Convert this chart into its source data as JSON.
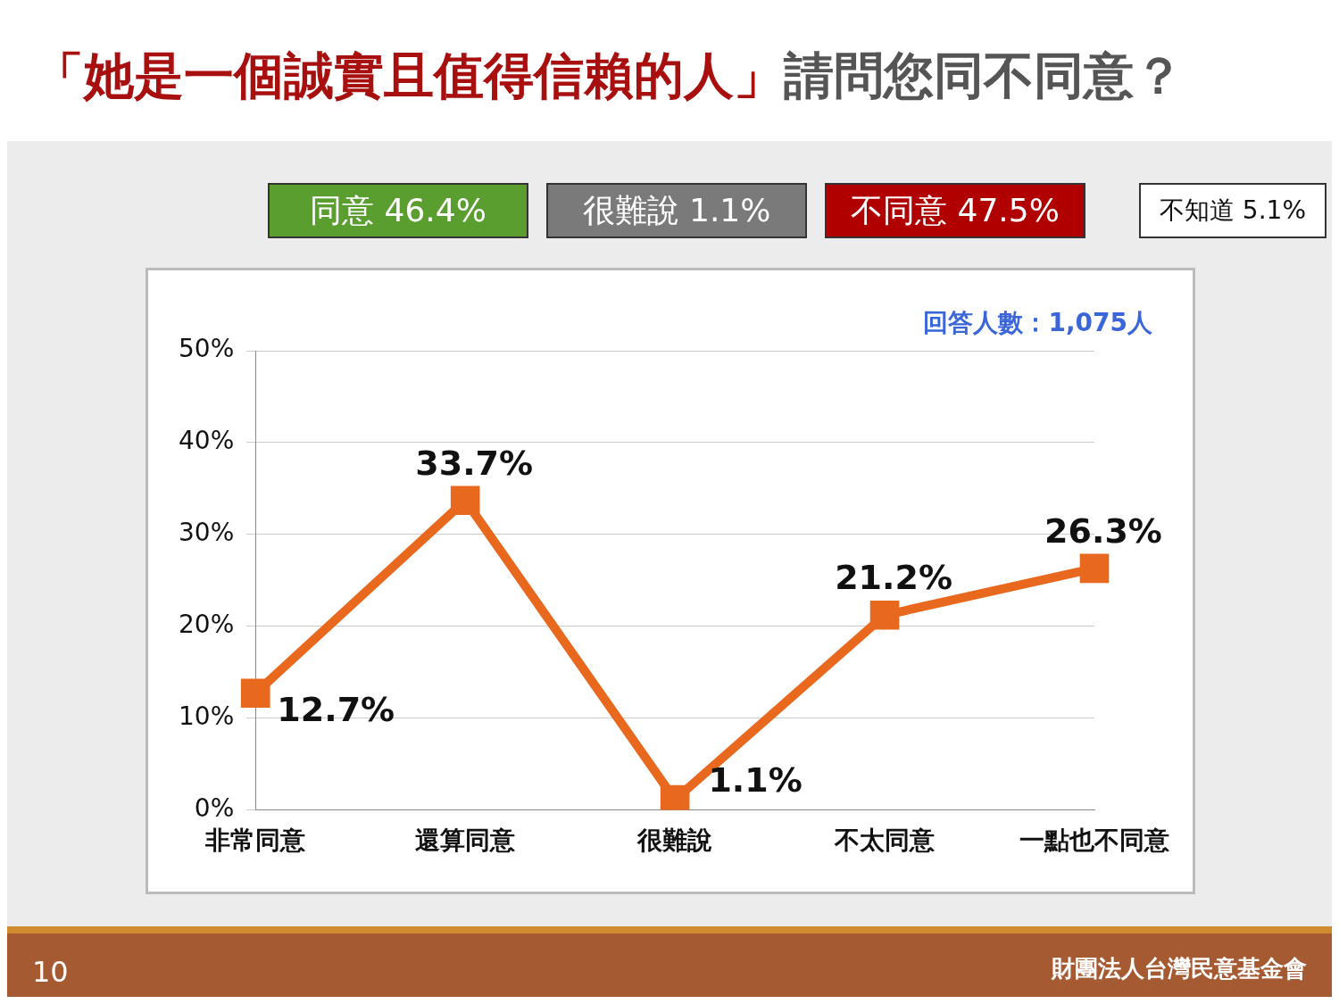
{
  "chart_data": {
    "type": "line",
    "title": "「她是一個誠實且值得信賴的人」請問您同不同意？",
    "categories": [
      "非常同意",
      "還算同意",
      "很難說",
      "不太同意",
      "一點也不同意"
    ],
    "series": [
      {
        "color": "#e8691e",
        "values": [
          12.7,
          33.7,
          1.1,
          21.2,
          26.3
        ],
        "value_labels": [
          "12.7%",
          "33.7%",
          "1.1%",
          "21.2%",
          "26.3%"
        ]
      }
    ],
    "ylim": [
      0,
      50
    ],
    "yticks": [
      {
        "value": 0,
        "label": "0%"
      },
      {
        "value": 10,
        "label": "10%"
      },
      {
        "value": 20,
        "label": "20%"
      },
      {
        "value": 30,
        "label": "30%"
      },
      {
        "value": 40,
        "label": "40%"
      },
      {
        "value": 50,
        "label": "50%"
      }
    ],
    "grid": "y",
    "legend": false,
    "marker": "square",
    "line_style": "solid",
    "annotations": [
      "同意 46.4%",
      "很難說 1.1%",
      "不同意 47.5%",
      "不知道 5.1%",
      "回答人數：1,075人",
      "10",
      "財團法人台灣民意基金會"
    ]
  }
}
